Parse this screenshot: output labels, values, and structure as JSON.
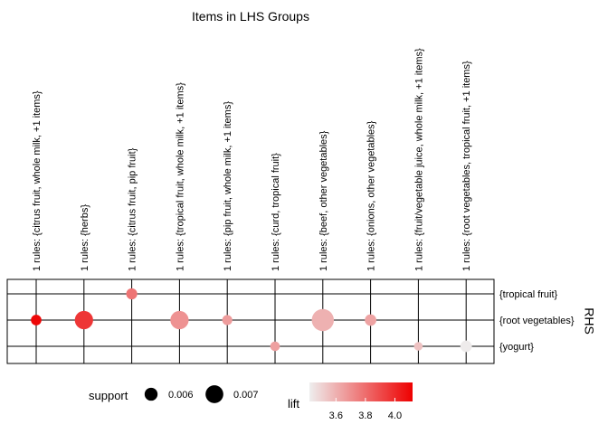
{
  "chart_data": {
    "type": "grouped-matrix",
    "title": "Items in LHS Groups",
    "ylabel": "RHS",
    "lhs_groups": [
      "1 rules: {citrus fruit, whole milk, +1 items}",
      "1 rules: {herbs}",
      "1 rules: {citrus fruit, pip fruit}",
      "1 rules: {tropical fruit, whole milk, +1 items}",
      "1 rules: {pip fruit, whole milk, +1 items}",
      "1 rules: {curd, tropical fruit}",
      "1 rules: {beef, other vegetables}",
      "1 rules: {onions, other vegetables}",
      "1 rules: {fruit/vegetable juice, whole milk, +1 items}",
      "1 rules: {root vegetables, tropical fruit, +1 items}"
    ],
    "rhs_items": [
      "{tropical fruit}",
      "{root vegetables}",
      "{yogurt}"
    ],
    "points": [
      {
        "lhs": 0,
        "rhs": 1,
        "support": 0.0055,
        "lift": 4.1
      },
      {
        "lhs": 1,
        "rhs": 1,
        "support": 0.0071,
        "lift": 3.96
      },
      {
        "lhs": 2,
        "rhs": 0,
        "support": 0.0056,
        "lift": 3.78
      },
      {
        "lhs": 3,
        "rhs": 1,
        "support": 0.0071,
        "lift": 3.69
      },
      {
        "lhs": 4,
        "rhs": 1,
        "support": 0.0054,
        "lift": 3.66
      },
      {
        "lhs": 5,
        "rhs": 2,
        "support": 0.0053,
        "lift": 3.65
      },
      {
        "lhs": 6,
        "rhs": 1,
        "support": 0.0079,
        "lift": 3.6
      },
      {
        "lhs": 7,
        "rhs": 1,
        "support": 0.0057,
        "lift": 3.64
      },
      {
        "lhs": 8,
        "rhs": 2,
        "support": 0.0051,
        "lift": 3.55
      },
      {
        "lhs": 9,
        "rhs": 2,
        "support": 0.0057,
        "lift": 3.43
      }
    ],
    "size_legend": {
      "title": "support",
      "entries": [
        {
          "label": "0.006",
          "value": 0.006
        },
        {
          "label": "0.007",
          "value": 0.007
        }
      ]
    },
    "color_legend": {
      "title": "lift",
      "min": 3.42,
      "max": 4.12,
      "low_color": "#eeeeee",
      "high_color": "#ee0000",
      "ticks": [
        {
          "label": "3.6",
          "value": 3.6
        },
        {
          "label": "3.8",
          "value": 3.8
        },
        {
          "label": "4.0",
          "value": 4.0
        }
      ]
    }
  }
}
